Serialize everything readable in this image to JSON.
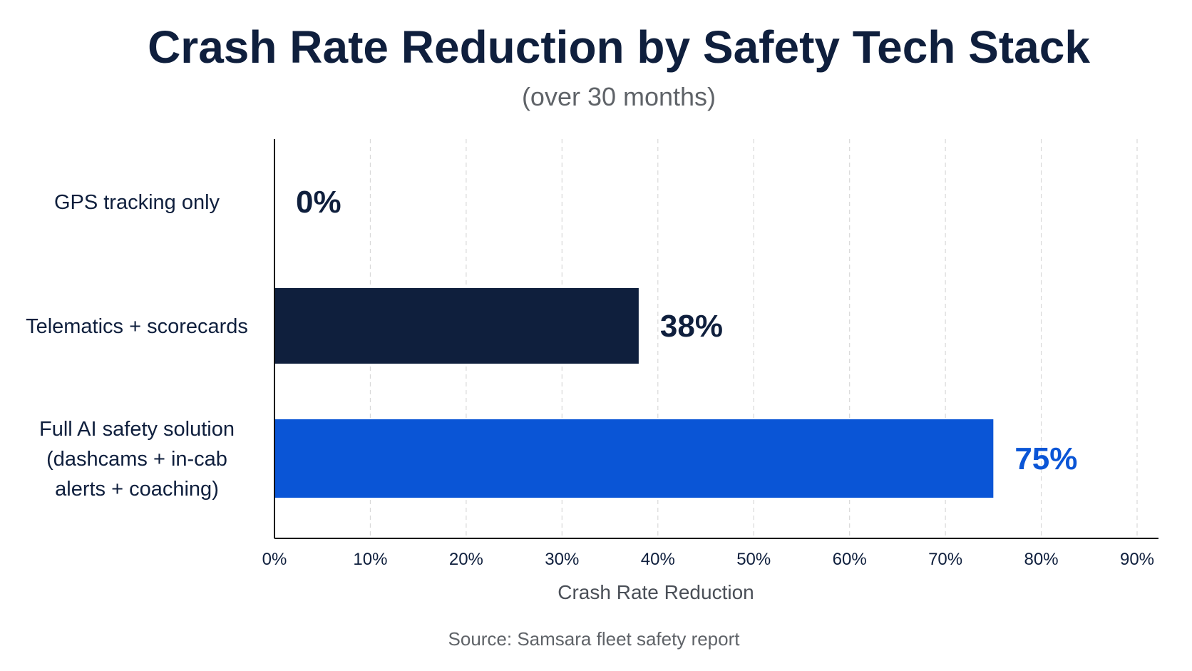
{
  "chart_data": {
    "type": "bar",
    "orientation": "horizontal",
    "title": "Crash Rate Reduction by Safety Tech Stack",
    "subtitle": "(over 30 months)",
    "xlabel": "Crash Rate Reduction",
    "ylabel": "",
    "xlim": [
      0,
      90
    ],
    "x_ticks": [
      "0%",
      "10%",
      "20%",
      "30%",
      "40%",
      "50%",
      "60%",
      "70%",
      "80%",
      "90%"
    ],
    "grid": "vertical dashed",
    "legend": "none",
    "source": "Source: Samsara fleet safety report",
    "categories": [
      [
        "GPS tracking only"
      ],
      [
        "Telematics + scorecards"
      ],
      [
        "Full AI safety solution",
        "(dashcams + in-cab",
        "alerts + coaching)"
      ]
    ],
    "values": [
      0,
      38,
      75
    ],
    "value_labels": [
      "0%",
      "38%",
      "75%"
    ],
    "bar_colors": [
      "#0f1f3d",
      "#0f1f3d",
      "#0a55d6"
    ],
    "value_label_colors": [
      "#0f1f3d",
      "#0f1f3d",
      "#0a55d6"
    ]
  }
}
